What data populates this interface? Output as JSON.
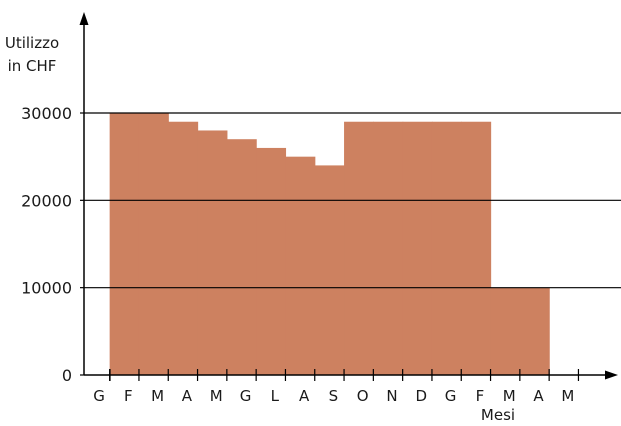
{
  "chart_data": {
    "type": "area",
    "ylabel_lines": [
      "Utilizzo",
      "in CHF"
    ],
    "xlabel": "Mesi",
    "categories": [
      "G",
      "F",
      "M",
      "A",
      "M",
      "G",
      "L",
      "A",
      "S",
      "O",
      "N",
      "D",
      "G",
      "F",
      "M",
      "A",
      "M"
    ],
    "series": [
      {
        "values": [
          null,
          30000,
          30000,
          29000,
          28000,
          27000,
          26000,
          25000,
          24000,
          29000,
          29000,
          29000,
          29000,
          29000,
          10000,
          10000,
          null
        ]
      }
    ],
    "yticks": [
      0,
      10000,
      20000,
      30000
    ],
    "ytick_labels": [
      "0",
      "10000",
      "20000",
      "30000"
    ],
    "ylim": [
      0,
      30000
    ],
    "grid": true,
    "colors": {
      "fill": "#cd8160",
      "axis": "#000000",
      "text": "#1a1a1a"
    }
  }
}
